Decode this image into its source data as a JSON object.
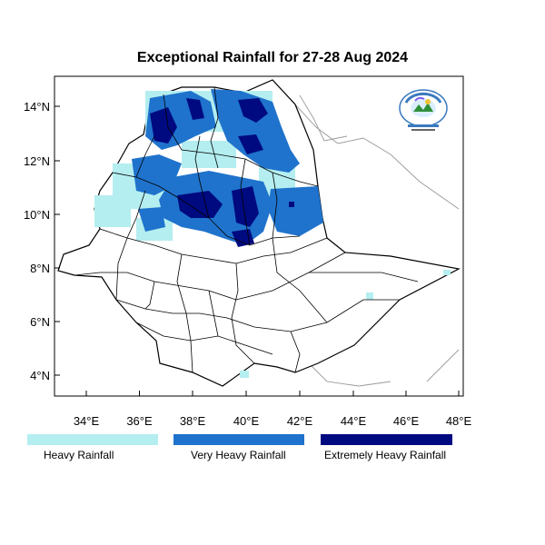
{
  "title": "Exceptional Rainfall for 27-28 Aug 2024",
  "colors": {
    "heavy": "#b4eef0",
    "very_heavy": "#1f73cc",
    "extremely_heavy": "#000a80",
    "border": "#000000",
    "coast": "#999999"
  },
  "axes": {
    "x_ticks": [
      "34°E",
      "36°E",
      "38°E",
      "40°E",
      "42°E",
      "44°E",
      "46°E",
      "48°E"
    ],
    "y_ticks": [
      "14°N",
      "12°N",
      "10°N",
      "8°N",
      "6°N",
      "4°N"
    ]
  },
  "legend": [
    {
      "label": "Heavy Rainfall",
      "color": "#b4eef0"
    },
    {
      "label": "Very Heavy Rainfall",
      "color": "#1f73cc"
    },
    {
      "label": "Extremely Heavy Rainfall",
      "color": "#000a80"
    }
  ],
  "logo": {
    "name": "ethiopian-meteorology-institute-logo"
  }
}
